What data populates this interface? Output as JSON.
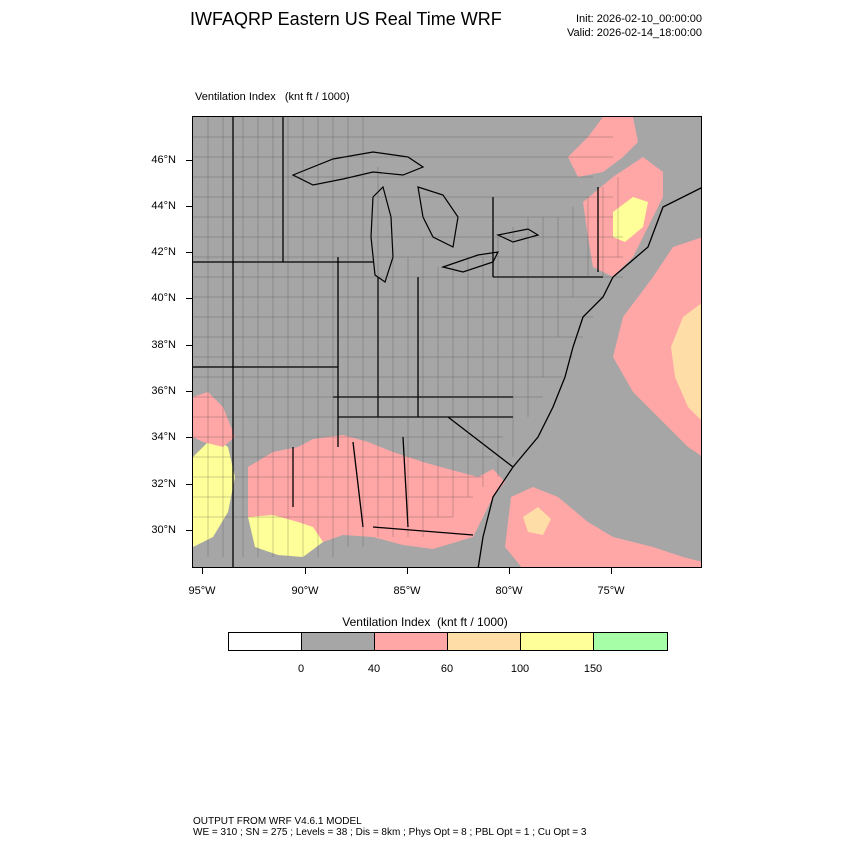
{
  "header": {
    "title": "IWFAQRP Eastern US Real Time WRF",
    "init": "Init: 2026-02-10_00:00:00",
    "valid": "Valid: 2026-02-14_18:00:00"
  },
  "map": {
    "field_label": "Ventilation Index   (knt ft / 1000)",
    "lat_labels": [
      "46°N",
      "44°N",
      "42°N",
      "40°N",
      "38°N",
      "36°N",
      "34°N",
      "32°N",
      "30°N"
    ],
    "lon_labels": [
      "95°W",
      "90°W",
      "85°W",
      "80°W",
      "75°W"
    ],
    "colors": {
      "land": "#a6a6a6",
      "low": "#ffa6a6",
      "mid": "#ffdda6",
      "high": "#ffff99"
    }
  },
  "legend": {
    "title": "Ventilation Index  (knt ft / 1000)",
    "levels": [
      "0",
      "40",
      "60",
      "100",
      "150"
    ],
    "colors": [
      "#ffffff",
      "#a6a6a6",
      "#ffa6a6",
      "#ffdda6",
      "#ffff99",
      "#a6ffa6"
    ]
  },
  "footer": {
    "line1": "OUTPUT FROM WRF V4.6.1 MODEL",
    "line2": "WE = 310 ; SN = 275 ; Levels = 38 ; Dis = 8km ; Phys Opt = 8 ; PBL Opt = 1 ; Cu Opt = 3"
  }
}
